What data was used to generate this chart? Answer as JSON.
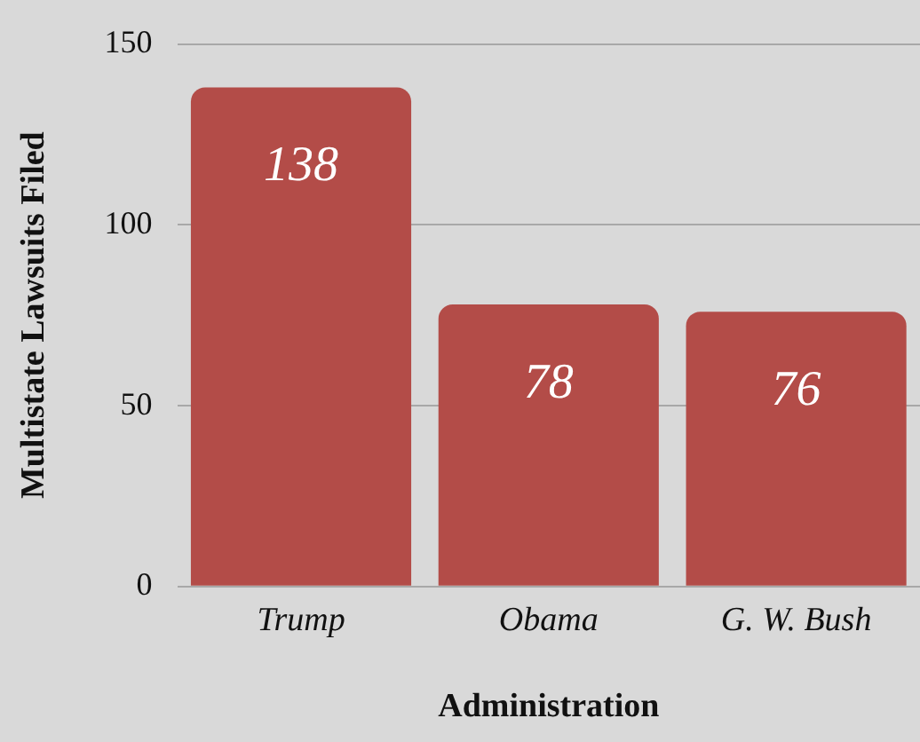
{
  "chart_data": {
    "type": "bar",
    "xlabel": "Administration",
    "ylabel": "Multistate Lawsuits Filed",
    "categories": [
      "Trump",
      "Obama",
      "G. W. Bush"
    ],
    "values": [
      138,
      78,
      76
    ],
    "color": "#b34c48",
    "ylim": [
      0,
      150
    ],
    "yticks": [
      0,
      50,
      100,
      150
    ],
    "grid": "y",
    "data_labels": true
  }
}
